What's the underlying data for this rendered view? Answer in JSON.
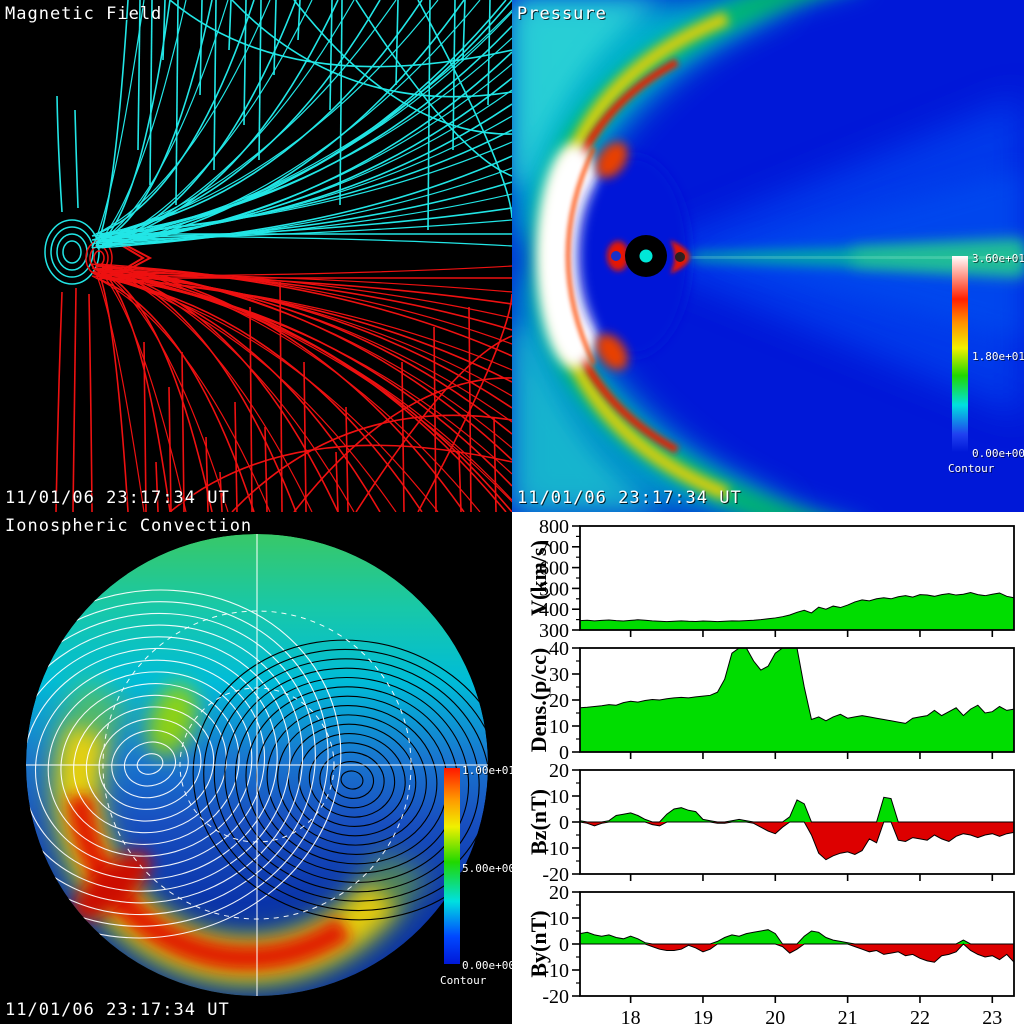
{
  "panels": {
    "magnetic_field": {
      "title": "Magnetic Field",
      "timestamp": "11/01/06 23:17:34 UT",
      "colors": {
        "north_lines": "#22e6e6",
        "south_lines": "#ee1111",
        "background": "#000000"
      }
    },
    "pressure": {
      "title": "Pressure",
      "timestamp": "11/01/06 23:17:34 UT",
      "colors": {
        "background": "#0018d8",
        "earth": "#000000",
        "earth_core": "#00e8d8"
      },
      "colorbar": {
        "top_label": "3.60e+01",
        "mid_label": "1.80e+01",
        "bottom_label": "0.00e+00",
        "caption": "Contour",
        "stops": [
          "#ffffff 0%",
          "#ff2000 22%",
          "#ff9000 34%",
          "#f0f000 47%",
          "#20d800 61%",
          "#00e0e0 76%",
          "#2040f0 91%",
          "#0018d8 100%"
        ]
      }
    },
    "ionospheric_convection": {
      "title": "Ionospheric Convection",
      "timestamp": "11/01/06 23:17:34 UT",
      "disc_stops": [
        "#38c868 0%",
        "#18c8a8 16%",
        "#00bcd8 32%",
        "#1878d0 48%",
        "#1850c0 62%",
        "#0a34aa 80%",
        "#082ea2 100%"
      ],
      "aurora_colors": {
        "glow": "#9cd400",
        "yellow": "#ffd800",
        "red": "#e01800",
        "hot_spot": "#cc1000"
      },
      "contour_colors": {
        "dusk_cell": "#ffffff",
        "dawn_cell": "#000000"
      },
      "colorbar": {
        "top_label": "1.00e+01",
        "mid_label": "5.00e+00",
        "bottom_label": "0.00e+00",
        "caption": "Contour",
        "stops": [
          "#ff1800 0%",
          "#ff9800 16%",
          "#f0f000 30%",
          "#20d800 48%",
          "#00e0e0 68%",
          "#0048ff 86%",
          "#0018d8 100%"
        ]
      }
    }
  },
  "chart_data": [
    {
      "type": "area",
      "ylabel": "V(km/s)",
      "ylim": [
        300,
        800
      ],
      "yticks": [
        300,
        400,
        500,
        600,
        700,
        800
      ],
      "ytick_minor": 50,
      "xlim": [
        17.3,
        23.3
      ],
      "x_start": 17.3,
      "x_step": 0.1,
      "xticks": [
        18,
        19,
        20,
        21,
        22,
        23
      ],
      "show_x_labels": false,
      "fill_positive": "#00dd00",
      "values": [
        345,
        347,
        344,
        346,
        348,
        345,
        343,
        346,
        349,
        347,
        344,
        342,
        340,
        342,
        344,
        342,
        341,
        343,
        342,
        340,
        342,
        344,
        343,
        345,
        347,
        350,
        354,
        358,
        364,
        372,
        385,
        395,
        382,
        410,
        400,
        415,
        408,
        420,
        435,
        445,
        440,
        450,
        455,
        450,
        460,
        465,
        458,
        470,
        468,
        462,
        470,
        475,
        468,
        472,
        480,
        470,
        465,
        472,
        478,
        462,
        455
      ]
    },
    {
      "type": "area",
      "ylabel": "Dens.(p/cc)",
      "ylim": [
        0,
        40
      ],
      "yticks": [
        0,
        10,
        20,
        30,
        40
      ],
      "ytick_minor": 5,
      "xlim": [
        17.3,
        23.3
      ],
      "x_start": 17.3,
      "x_step": 0.1,
      "xticks": [
        18,
        19,
        20,
        21,
        22,
        23
      ],
      "show_x_labels": false,
      "fill_positive": "#00dd00",
      "values": [
        17.0,
        17.2,
        17.5,
        17.8,
        18.2,
        18.0,
        19.0,
        19.5,
        19.2,
        19.8,
        20.2,
        20.0,
        20.5,
        20.8,
        21.0,
        20.8,
        21.2,
        21.5,
        21.8,
        23.0,
        28.0,
        38.0,
        41.0,
        40.0,
        35.0,
        31.5,
        33.0,
        38.0,
        41.0,
        41.0,
        41.0,
        25.0,
        12.5,
        13.5,
        12.0,
        13.5,
        14.5,
        13.0,
        13.5,
        14.0,
        13.5,
        13.0,
        12.5,
        12.0,
        11.5,
        11.0,
        13.0,
        13.5,
        14.0,
        16.0,
        14.0,
        15.5,
        17.0,
        14.0,
        16.5,
        18.0,
        15.0,
        15.5,
        17.5,
        16.0,
        16.5
      ]
    },
    {
      "type": "diverging-area",
      "ylabel": "Bz(nT)",
      "ylim": [
        -20,
        20
      ],
      "yticks": [
        -20,
        -10,
        0,
        10,
        20
      ],
      "ytick_minor": 5,
      "xlim": [
        17.3,
        23.3
      ],
      "x_start": 17.3,
      "x_step": 0.1,
      "xticks": [
        18,
        19,
        20,
        21,
        22,
        23
      ],
      "show_x_labels": false,
      "fill_positive": "#00dd00",
      "fill_negative": "#dd0000",
      "values": [
        0.5,
        -0.5,
        -1.5,
        -0.5,
        0.5,
        2.5,
        3.0,
        3.5,
        2.5,
        1.0,
        -1.0,
        -1.5,
        3.0,
        5.0,
        5.5,
        4.5,
        4.0,
        1.0,
        0.5,
        -0.5,
        -0.5,
        0.5,
        1.0,
        0.5,
        -0.5,
        -2.0,
        -3.5,
        -4.5,
        -2.0,
        2.0,
        8.5,
        7.0,
        -5.0,
        -12.0,
        -14.5,
        -13.0,
        -12.0,
        -11.5,
        -12.5,
        -11.0,
        -6.5,
        -8.0,
        9.5,
        9.0,
        -7.0,
        -7.5,
        -6.0,
        -6.5,
        -7.0,
        -5.0,
        -6.5,
        -7.5,
        -5.5,
        -4.5,
        -5.0,
        -6.0,
        -5.0,
        -4.5,
        -5.5,
        -4.5,
        -4.0
      ]
    },
    {
      "type": "diverging-area",
      "ylabel": "By(nT)",
      "ylim": [
        -20,
        20
      ],
      "yticks": [
        -20,
        -10,
        0,
        10,
        20
      ],
      "ytick_minor": 5,
      "xlim": [
        17.3,
        23.3
      ],
      "x_start": 17.3,
      "x_step": 0.1,
      "xticks": [
        18,
        19,
        20,
        21,
        22,
        23
      ],
      "show_x_labels": true,
      "fill_positive": "#00dd00",
      "fill_negative": "#dd0000",
      "values": [
        4.0,
        4.5,
        3.5,
        3.0,
        3.5,
        2.5,
        2.0,
        3.0,
        2.0,
        0.5,
        -1.0,
        -2.0,
        -2.5,
        -2.5,
        -2.0,
        -0.5,
        -1.5,
        -3.0,
        -2.0,
        1.0,
        2.5,
        3.5,
        3.0,
        4.0,
        4.5,
        5.0,
        5.5,
        4.0,
        -1.0,
        -3.5,
        -2.0,
        3.0,
        5.0,
        4.5,
        2.5,
        1.5,
        1.0,
        0.5,
        -1.0,
        -2.0,
        -3.0,
        -2.5,
        -4.0,
        -3.5,
        -3.0,
        -4.5,
        -4.0,
        -5.5,
        -6.5,
        -7.0,
        -4.5,
        -4.0,
        -3.0,
        1.5,
        -2.5,
        -4.0,
        -5.0,
        -4.5,
        -6.0,
        -4.0,
        -7.0
      ]
    }
  ]
}
